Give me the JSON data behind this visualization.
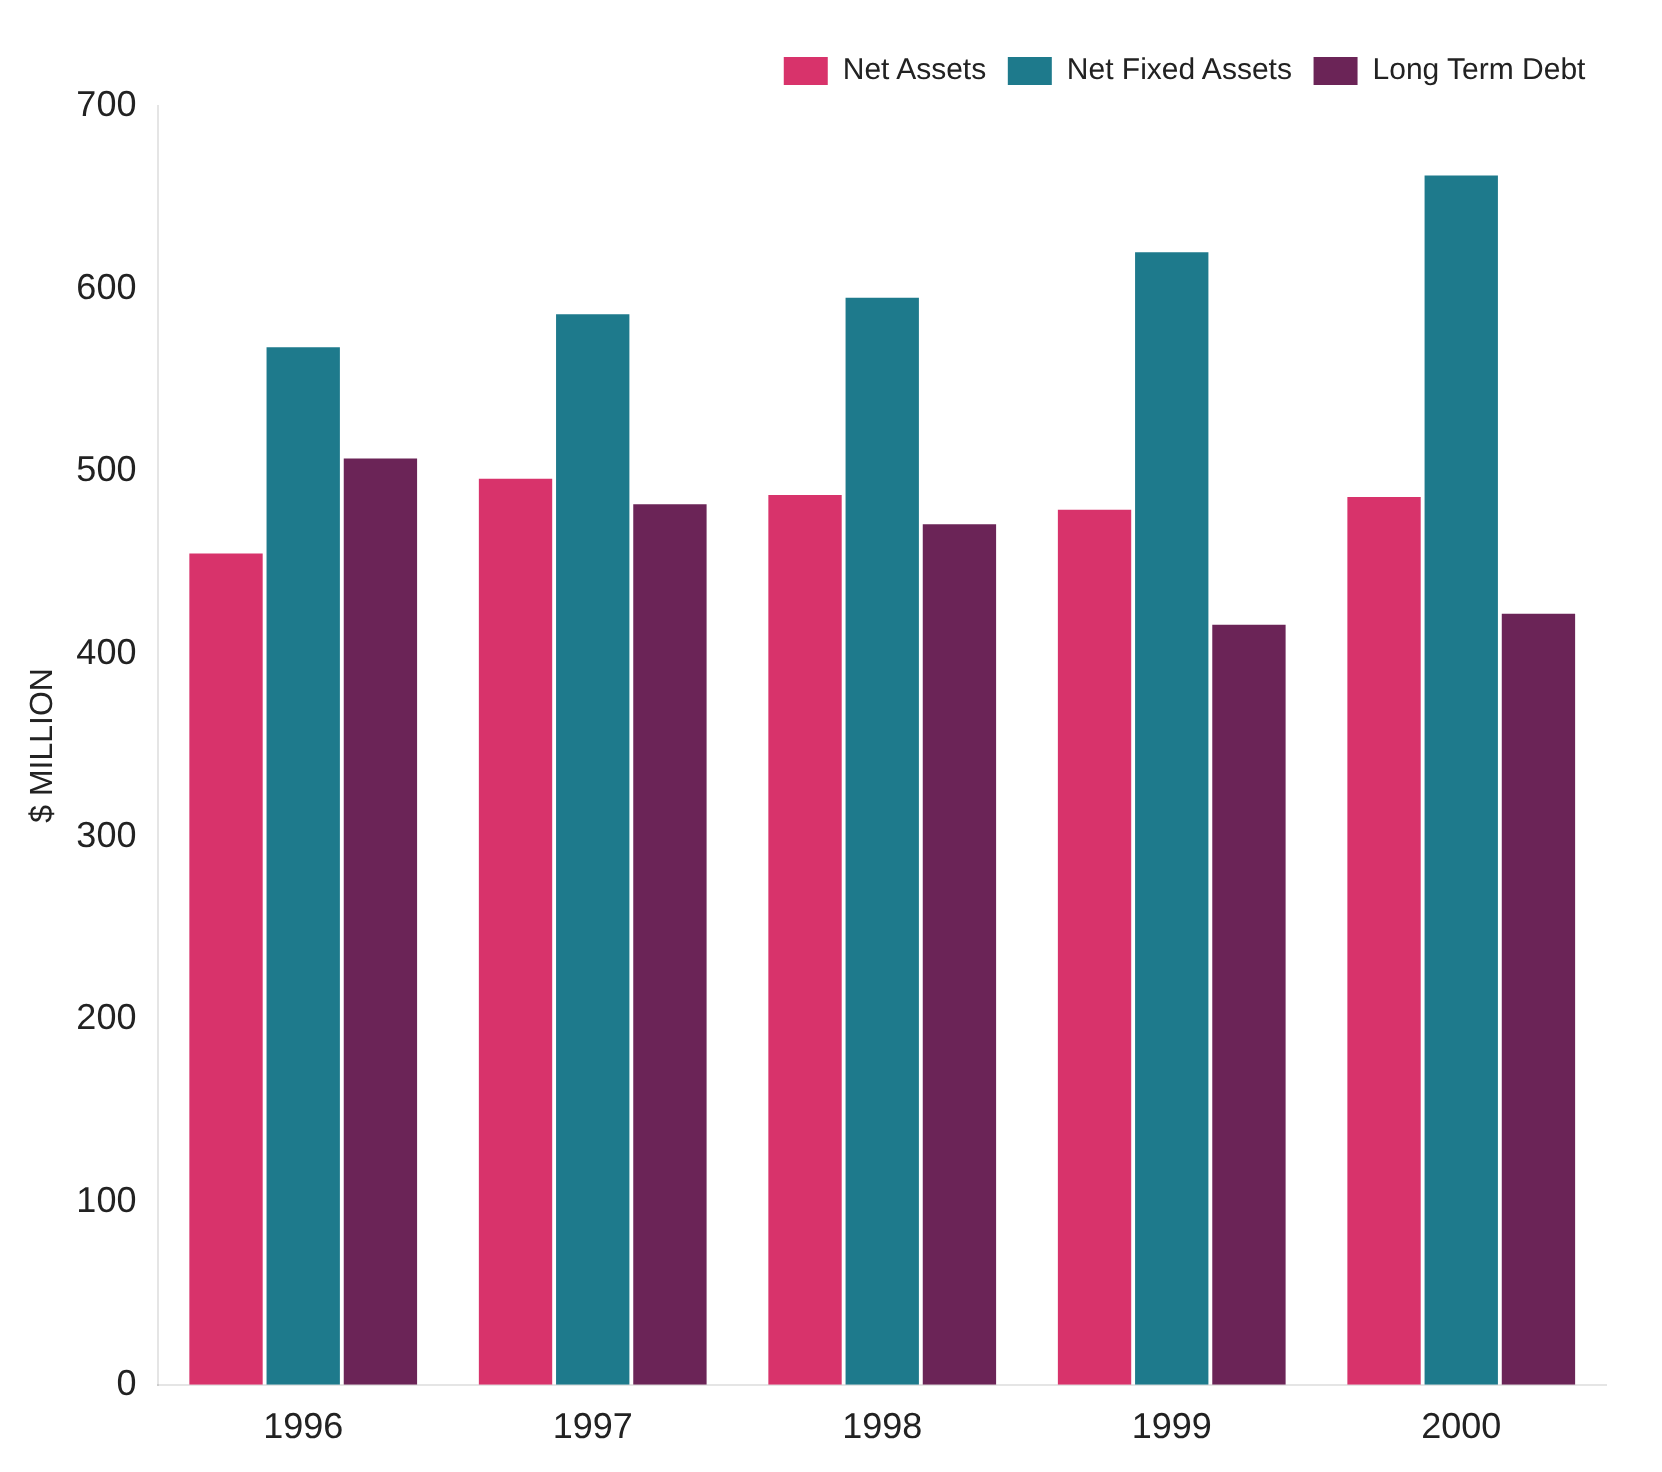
{
  "chart_data": {
    "type": "bar",
    "ylabel": "$ MILLION",
    "categories": [
      "1996",
      "1997",
      "1998",
      "1999",
      "2000"
    ],
    "series": [
      {
        "name": "Net Assets",
        "color": "#d8336b",
        "values": [
          455,
          496,
          487,
          479,
          486
        ]
      },
      {
        "name": "Net Fixed Assets",
        "color": "#1e7a8c",
        "values": [
          568,
          586,
          595,
          620,
          662
        ]
      },
      {
        "name": "Long Term Debt",
        "color": "#6b2457",
        "values": [
          507,
          482,
          471,
          416,
          422
        ]
      }
    ],
    "ylim": [
      0,
      700
    ],
    "yticks": [
      0,
      100,
      200,
      300,
      400,
      500,
      600,
      700
    ],
    "grid": false,
    "legend": "top right"
  }
}
